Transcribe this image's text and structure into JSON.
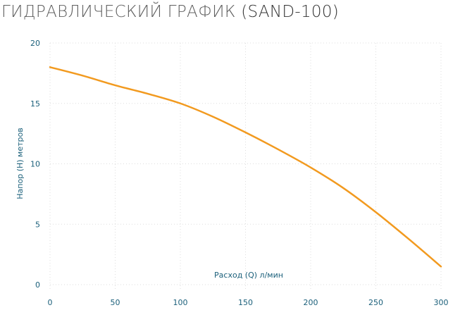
{
  "page": {
    "title_main": "ГИДРАВЛИЧЕСКИЙ ГРАФИК",
    "title_model": "(SAND-100)"
  },
  "colors": {
    "line": "#f29a1f",
    "axis_text": "#1a5f7a",
    "grid": "#dddddd"
  },
  "chart_data": {
    "type": "line",
    "title": "ГИДРАВЛИЧЕСКИЙ ГРАФИК (SAND-100)",
    "xlabel": "Расход (Q) л/мин",
    "ylabel": "Напор (H) метров",
    "xlim": [
      0,
      300
    ],
    "ylim": [
      0,
      20
    ],
    "x_ticks": [
      "0",
      "50",
      "100",
      "150",
      "200",
      "250",
      "300"
    ],
    "y_ticks": [
      "0",
      "5",
      "10",
      "15",
      "20"
    ],
    "grid": true,
    "series": [
      {
        "x": [
          0,
          25,
          50,
          75,
          100,
          125,
          150,
          175,
          200,
          225,
          250,
          275,
          300
        ],
        "y": [
          18,
          17.3,
          16.5,
          15.8,
          15,
          13.9,
          12.6,
          11.2,
          9.7,
          8,
          6,
          3.8,
          1.5
        ]
      }
    ]
  }
}
